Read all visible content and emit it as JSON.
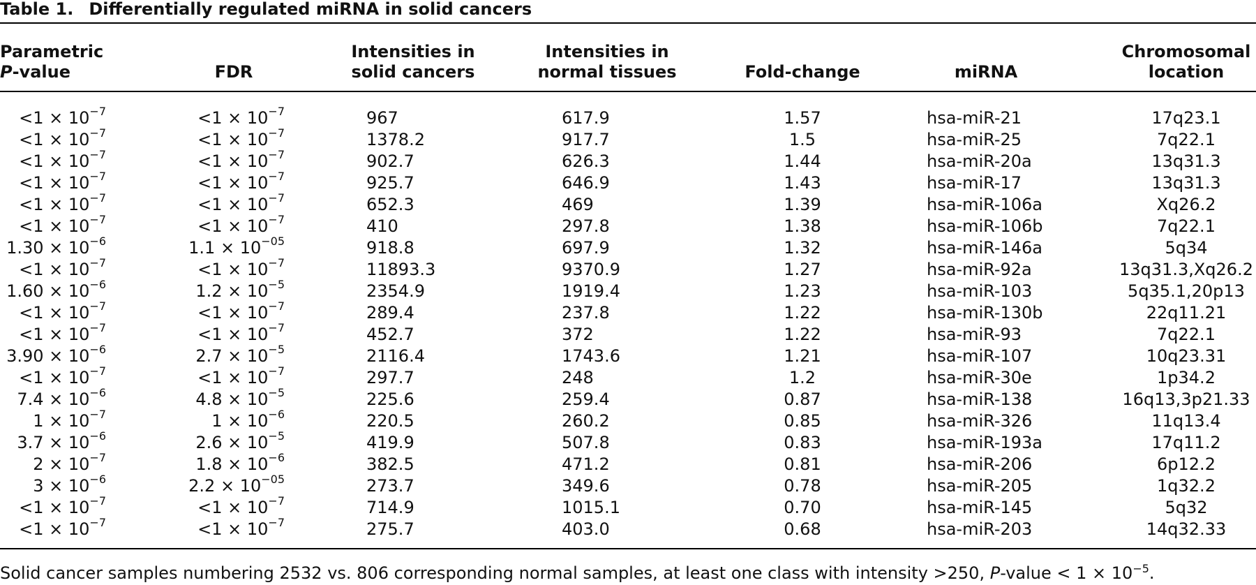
{
  "table": {
    "label": "Table 1.",
    "title": "Differentially regulated miRNA in solid cancers",
    "headers": {
      "pvalue_line1": "Parametric",
      "pvalue_line2_italic": "P",
      "pvalue_line2_rest": "-value",
      "fdr": "FDR",
      "solid_line1": "Intensities in",
      "solid_line2": "solid cancers",
      "normal_line1": "Intensities in",
      "normal_line2": "normal tissues",
      "fold": "Fold-change",
      "mirna": "miRNA",
      "chrom_line1": "Chromosomal",
      "chrom_line2": "location"
    },
    "rows": [
      {
        "p_base": "<1 × 10",
        "p_exp": "−7",
        "fdr_base": "<1 × 10",
        "fdr_exp": "−7",
        "solid": "967",
        "normal": "617.9",
        "fold": "1.57",
        "mirna": "hsa-miR-21",
        "loc": "17q23.1"
      },
      {
        "p_base": "<1 × 10",
        "p_exp": "−7",
        "fdr_base": "<1 × 10",
        "fdr_exp": "−7",
        "solid": "1378.2",
        "normal": "917.7",
        "fold": "1.5",
        "mirna": "hsa-miR-25",
        "loc": "7q22.1"
      },
      {
        "p_base": "<1 × 10",
        "p_exp": "−7",
        "fdr_base": "<1 × 10",
        "fdr_exp": "−7",
        "solid": "902.7",
        "normal": "626.3",
        "fold": "1.44",
        "mirna": "hsa-miR-20a",
        "loc": "13q31.3"
      },
      {
        "p_base": "<1 × 10",
        "p_exp": "−7",
        "fdr_base": "<1 × 10",
        "fdr_exp": "−7",
        "solid": "925.7",
        "normal": "646.9",
        "fold": "1.43",
        "mirna": "hsa-miR-17",
        "loc": "13q31.3"
      },
      {
        "p_base": "<1 × 10",
        "p_exp": "−7",
        "fdr_base": "<1 × 10",
        "fdr_exp": "−7",
        "solid": "652.3",
        "normal": "469",
        "fold": "1.39",
        "mirna": "hsa-miR-106a",
        "loc": "Xq26.2"
      },
      {
        "p_base": "<1 × 10",
        "p_exp": "−7",
        "fdr_base": "<1 × 10",
        "fdr_exp": "−7",
        "solid": "410",
        "normal": "297.8",
        "fold": "1.38",
        "mirna": "hsa-miR-106b",
        "loc": "7q22.1"
      },
      {
        "p_base": "1.30 × 10",
        "p_exp": "−6",
        "fdr_base": "1.1 × 10",
        "fdr_exp": "−05",
        "solid": "918.8",
        "normal": "697.9",
        "fold": "1.32",
        "mirna": "hsa-miR-146a",
        "loc": "5q34"
      },
      {
        "p_base": "<1 × 10",
        "p_exp": "−7",
        "fdr_base": "<1 × 10",
        "fdr_exp": "−7",
        "solid": "11893.3",
        "normal": "9370.9",
        "fold": "1.27",
        "mirna": "hsa-miR-92a",
        "loc": "13q31.3,Xq26.2"
      },
      {
        "p_base": "1.60 × 10",
        "p_exp": "−6",
        "fdr_base": "1.2 × 10",
        "fdr_exp": "−5",
        "solid": "2354.9",
        "normal": "1919.4",
        "fold": "1.23",
        "mirna": "hsa-miR-103",
        "loc": "5q35.1,20p13"
      },
      {
        "p_base": "<1 × 10",
        "p_exp": "−7",
        "fdr_base": "<1 × 10",
        "fdr_exp": "−7",
        "solid": "289.4",
        "normal": "237.8",
        "fold": "1.22",
        "mirna": "hsa-miR-130b",
        "loc": "22q11.21"
      },
      {
        "p_base": "<1 × 10",
        "p_exp": "−7",
        "fdr_base": "<1 × 10",
        "fdr_exp": "−7",
        "solid": "452.7",
        "normal": "372",
        "fold": "1.22",
        "mirna": "hsa-miR-93",
        "loc": "7q22.1"
      },
      {
        "p_base": "3.90 × 10",
        "p_exp": "−6",
        "fdr_base": "2.7 × 10",
        "fdr_exp": "−5",
        "solid": "2116.4",
        "normal": "1743.6",
        "fold": "1.21",
        "mirna": "hsa-miR-107",
        "loc": "10q23.31"
      },
      {
        "p_base": "<1 × 10",
        "p_exp": "−7",
        "fdr_base": "<1 × 10",
        "fdr_exp": "−7",
        "solid": "297.7",
        "normal": "248",
        "fold": "1.2",
        "mirna": "hsa-miR-30e",
        "loc": "1p34.2"
      },
      {
        "p_base": "7.4 × 10",
        "p_exp": "−6",
        "fdr_base": "4.8 × 10",
        "fdr_exp": "−5",
        "solid": "225.6",
        "normal": "259.4",
        "fold": "0.87",
        "mirna": "hsa-miR-138",
        "loc": "16q13,3p21.33"
      },
      {
        "p_base": "1 × 10",
        "p_exp": "−7",
        "fdr_base": "1 × 10",
        "fdr_exp": "−6",
        "solid": "220.5",
        "normal": "260.2",
        "fold": "0.85",
        "mirna": "hsa-miR-326",
        "loc": "11q13.4"
      },
      {
        "p_base": "3.7 × 10",
        "p_exp": "−6",
        "fdr_base": "2.6 × 10",
        "fdr_exp": "−5",
        "solid": "419.9",
        "normal": "507.8",
        "fold": "0.83",
        "mirna": "hsa-miR-193a",
        "loc": "17q11.2"
      },
      {
        "p_base": "2 × 10",
        "p_exp": "−7",
        "fdr_base": "1.8 × 10",
        "fdr_exp": "−6",
        "solid": "382.5",
        "normal": "471.2",
        "fold": "0.81",
        "mirna": "hsa-miR-206",
        "loc": "6p12.2"
      },
      {
        "p_base": "3 × 10",
        "p_exp": "−6",
        "fdr_base": "2.2 × 10",
        "fdr_exp": "−05",
        "solid": "273.7",
        "normal": "349.6",
        "fold": "0.78",
        "mirna": "hsa-miR-205",
        "loc": "1q32.2"
      },
      {
        "p_base": "<1 × 10",
        "p_exp": "−7",
        "fdr_base": "<1 × 10",
        "fdr_exp": "−7",
        "solid": "714.9",
        "normal": "1015.1",
        "fold": "0.70",
        "mirna": "hsa-miR-145",
        "loc": "5q32"
      },
      {
        "p_base": "<1 × 10",
        "p_exp": "−7",
        "fdr_base": "<1 × 10",
        "fdr_exp": "−7",
        "solid": "275.7",
        "normal": "403.0",
        "fold": "0.68",
        "mirna": "hsa-miR-203",
        "loc": "14q32.33"
      }
    ],
    "footnote": {
      "part1": "Solid cancer samples numbering 2532 vs. 806 corresponding normal samples, at least one class with intensity >250, ",
      "italic_p": "P",
      "part2": "-value < 1 × 10",
      "exp": "−5",
      "part3": "."
    }
  }
}
